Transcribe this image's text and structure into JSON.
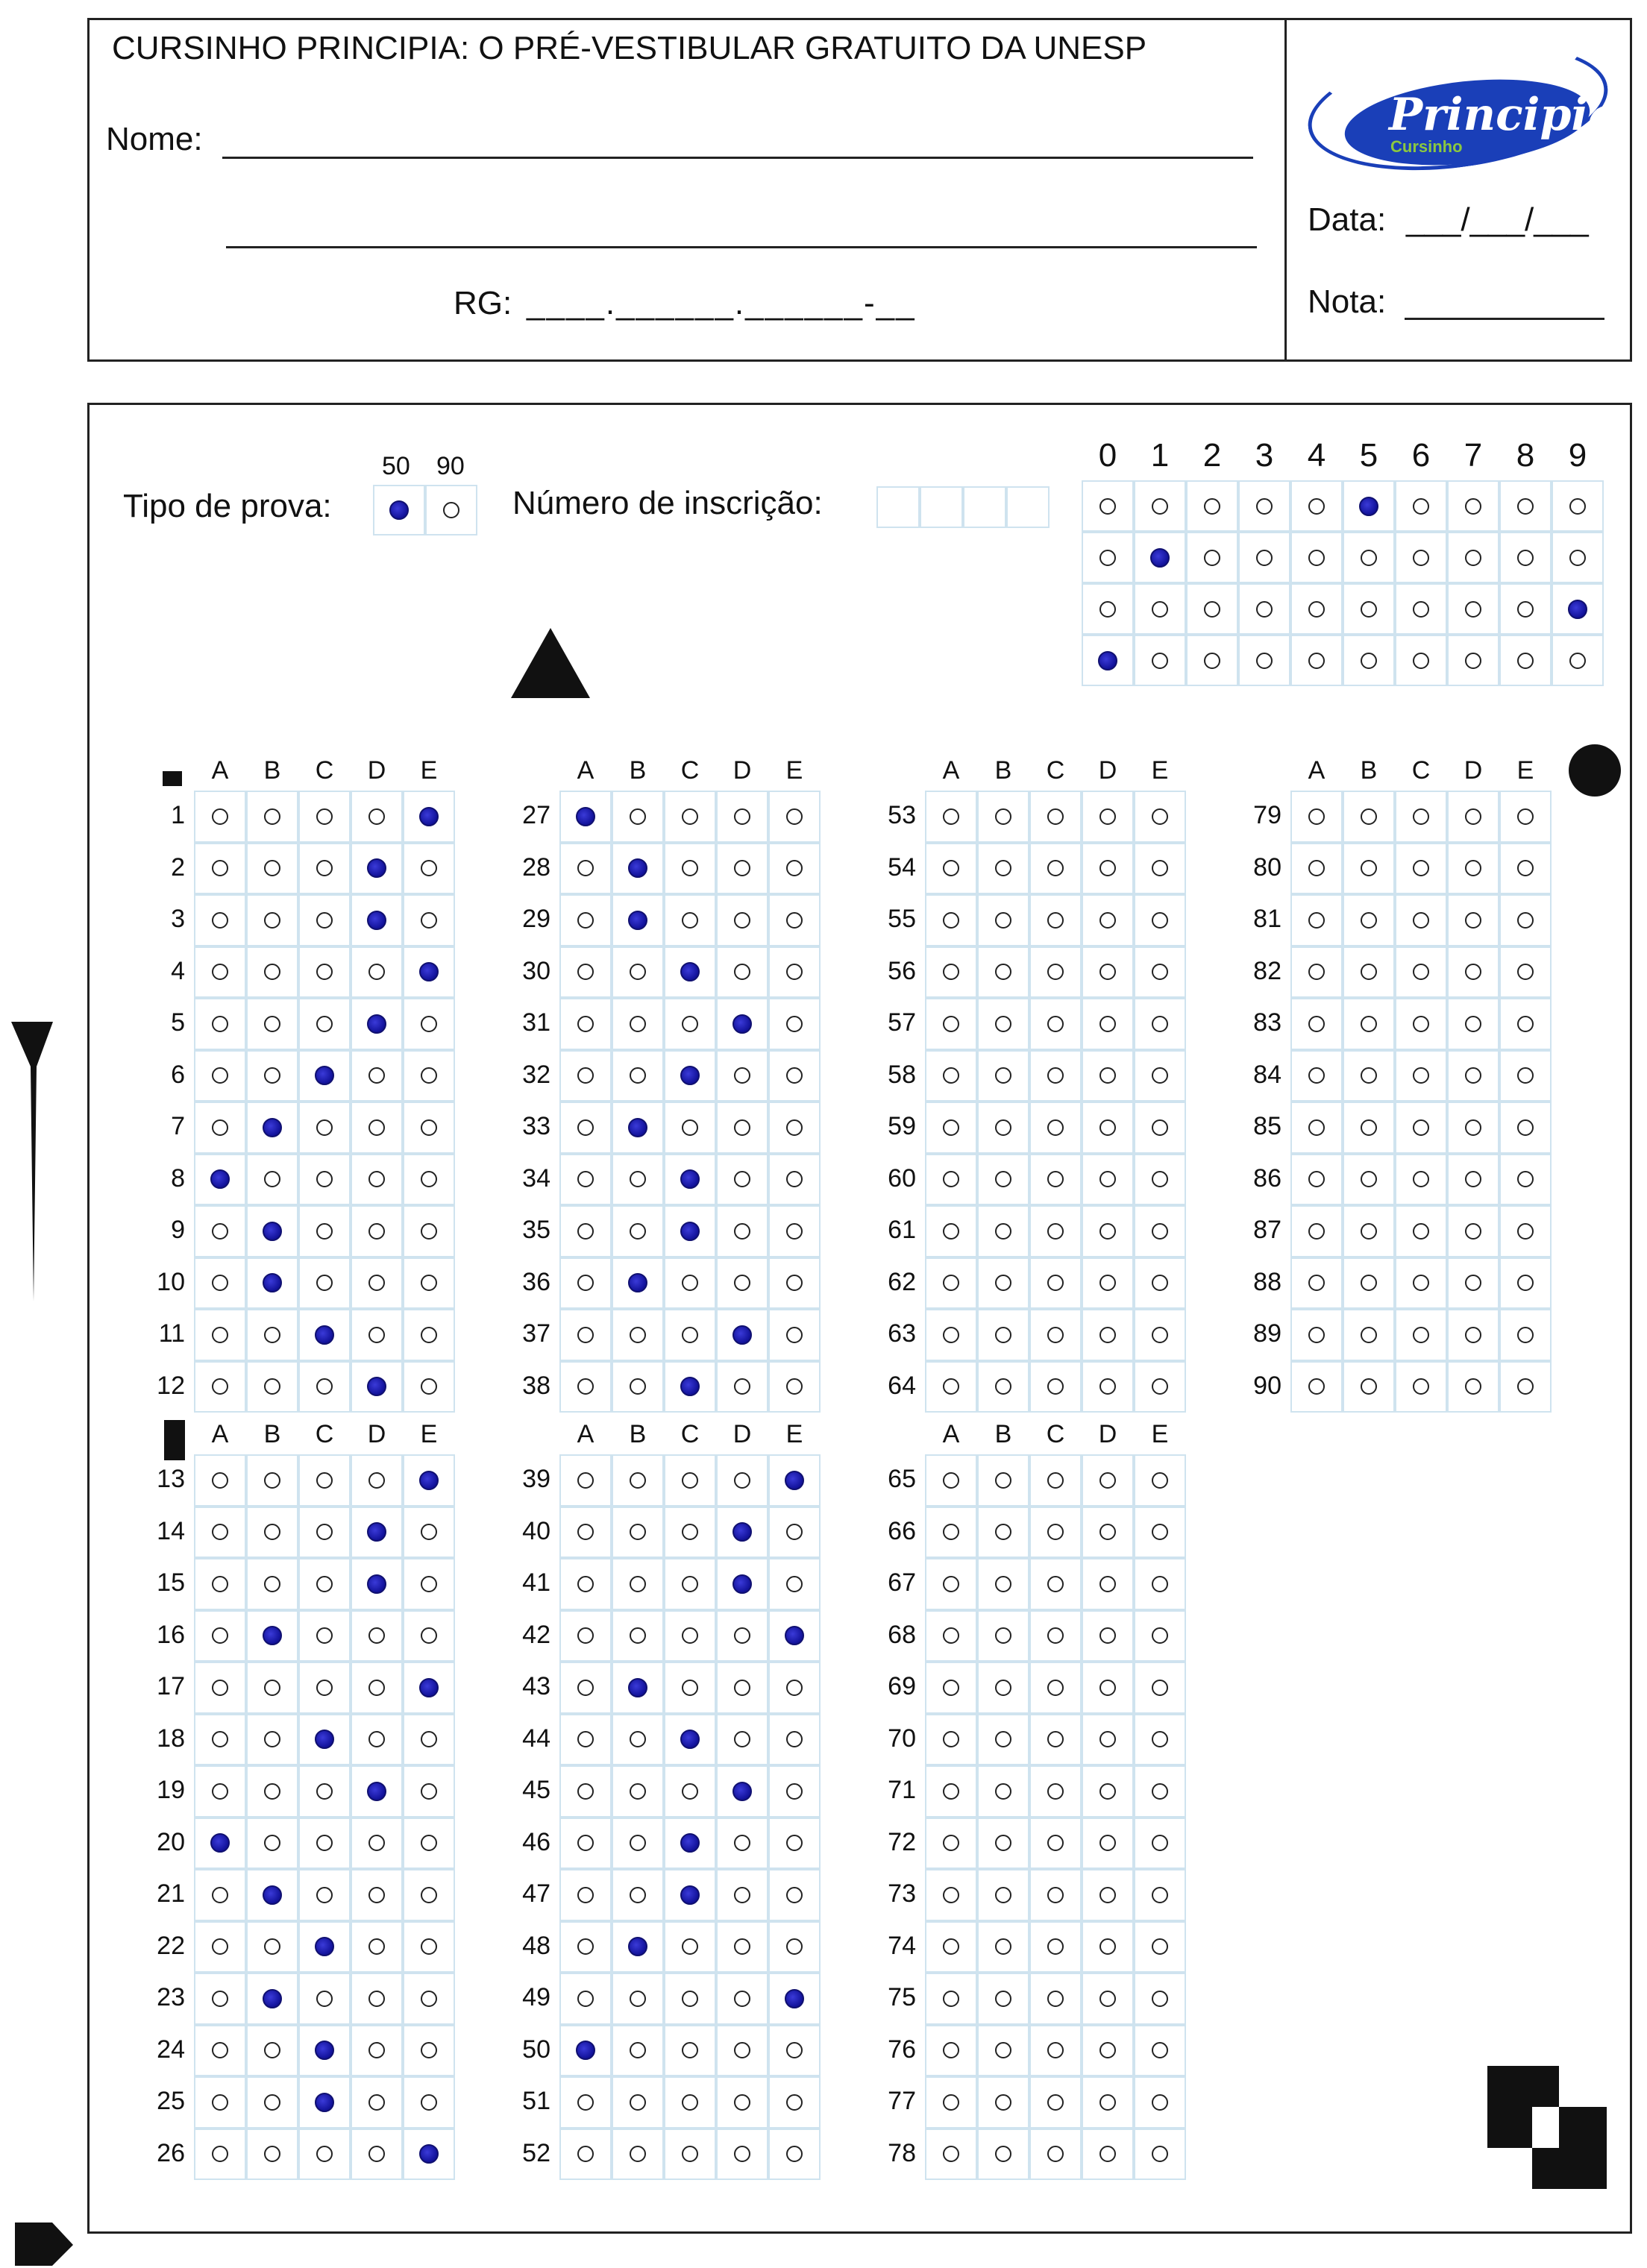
{
  "header": {
    "title": "CURSINHO PRINCIPIA: O PRÉ-VESTIBULAR GRATUITO DA UNESP",
    "name_label": "Nome:",
    "rg_label": "RG:",
    "rg_mask": "____.______.______-__",
    "date_label": "Data:",
    "date_mask": "___/___/___",
    "grade_label": "Nota:"
  },
  "logo": {
    "main": "Principia",
    "sub": "Cursinho",
    "brand_color": "#1a3fb8",
    "accent_color": "#8bc83f"
  },
  "exam_type": {
    "label": "Tipo de prova:",
    "options": [
      "50",
      "90"
    ],
    "selected": "50"
  },
  "registration": {
    "label": "Número de inscrição:",
    "digits_header": [
      "0",
      "1",
      "2",
      "3",
      "4",
      "5",
      "6",
      "7",
      "8",
      "9"
    ],
    "marked_digits": [
      5,
      1,
      9,
      0
    ]
  },
  "answer_sheet": {
    "letters": [
      "A",
      "B",
      "C",
      "D",
      "E"
    ],
    "questions": [
      {
        "n": 1,
        "a": "E"
      },
      {
        "n": 2,
        "a": "D"
      },
      {
        "n": 3,
        "a": "D"
      },
      {
        "n": 4,
        "a": "E"
      },
      {
        "n": 5,
        "a": "D"
      },
      {
        "n": 6,
        "a": "C"
      },
      {
        "n": 7,
        "a": "B"
      },
      {
        "n": 8,
        "a": "A"
      },
      {
        "n": 9,
        "a": "B"
      },
      {
        "n": 10,
        "a": "B"
      },
      {
        "n": 11,
        "a": "C"
      },
      {
        "n": 12,
        "a": "D"
      },
      {
        "n": 13,
        "a": "E"
      },
      {
        "n": 14,
        "a": "D"
      },
      {
        "n": 15,
        "a": "D"
      },
      {
        "n": 16,
        "a": "B"
      },
      {
        "n": 17,
        "a": "E"
      },
      {
        "n": 18,
        "a": "C"
      },
      {
        "n": 19,
        "a": "D"
      },
      {
        "n": 20,
        "a": "A"
      },
      {
        "n": 21,
        "a": "B"
      },
      {
        "n": 22,
        "a": "C"
      },
      {
        "n": 23,
        "a": "B"
      },
      {
        "n": 24,
        "a": "C"
      },
      {
        "n": 25,
        "a": "C"
      },
      {
        "n": 26,
        "a": "E"
      },
      {
        "n": 27,
        "a": "A"
      },
      {
        "n": 28,
        "a": "B"
      },
      {
        "n": 29,
        "a": "B"
      },
      {
        "n": 30,
        "a": "C"
      },
      {
        "n": 31,
        "a": "D"
      },
      {
        "n": 32,
        "a": "C"
      },
      {
        "n": 33,
        "a": "B"
      },
      {
        "n": 34,
        "a": "C"
      },
      {
        "n": 35,
        "a": "C"
      },
      {
        "n": 36,
        "a": "B"
      },
      {
        "n": 37,
        "a": "D"
      },
      {
        "n": 38,
        "a": "C"
      },
      {
        "n": 39,
        "a": "E"
      },
      {
        "n": 40,
        "a": "D"
      },
      {
        "n": 41,
        "a": "D"
      },
      {
        "n": 42,
        "a": "E"
      },
      {
        "n": 43,
        "a": "B"
      },
      {
        "n": 44,
        "a": "C"
      },
      {
        "n": 45,
        "a": "D"
      },
      {
        "n": 46,
        "a": "C"
      },
      {
        "n": 47,
        "a": "C"
      },
      {
        "n": 48,
        "a": "B"
      },
      {
        "n": 49,
        "a": "E"
      },
      {
        "n": 50,
        "a": "A"
      },
      {
        "n": 51,
        "a": ""
      },
      {
        "n": 52,
        "a": ""
      },
      {
        "n": 53,
        "a": ""
      },
      {
        "n": 54,
        "a": ""
      },
      {
        "n": 55,
        "a": ""
      },
      {
        "n": 56,
        "a": ""
      },
      {
        "n": 57,
        "a": ""
      },
      {
        "n": 58,
        "a": ""
      },
      {
        "n": 59,
        "a": ""
      },
      {
        "n": 60,
        "a": ""
      },
      {
        "n": 61,
        "a": ""
      },
      {
        "n": 62,
        "a": ""
      },
      {
        "n": 63,
        "a": ""
      },
      {
        "n": 64,
        "a": ""
      },
      {
        "n": 65,
        "a": ""
      },
      {
        "n": 66,
        "a": ""
      },
      {
        "n": 67,
        "a": ""
      },
      {
        "n": 68,
        "a": ""
      },
      {
        "n": 69,
        "a": ""
      },
      {
        "n": 70,
        "a": ""
      },
      {
        "n": 71,
        "a": ""
      },
      {
        "n": 72,
        "a": ""
      },
      {
        "n": 73,
        "a": ""
      },
      {
        "n": 74,
        "a": ""
      },
      {
        "n": 75,
        "a": ""
      },
      {
        "n": 76,
        "a": ""
      },
      {
        "n": 77,
        "a": ""
      },
      {
        "n": 78,
        "a": ""
      },
      {
        "n": 79,
        "a": ""
      },
      {
        "n": 80,
        "a": ""
      },
      {
        "n": 81,
        "a": ""
      },
      {
        "n": 82,
        "a": ""
      },
      {
        "n": 83,
        "a": ""
      },
      {
        "n": 84,
        "a": ""
      },
      {
        "n": 85,
        "a": ""
      },
      {
        "n": 86,
        "a": ""
      },
      {
        "n": 87,
        "a": ""
      },
      {
        "n": 88,
        "a": ""
      },
      {
        "n": 89,
        "a": ""
      },
      {
        "n": 90,
        "a": ""
      }
    ]
  },
  "colors": {
    "ink": "#12129a",
    "grid": "#cfe3ef"
  }
}
